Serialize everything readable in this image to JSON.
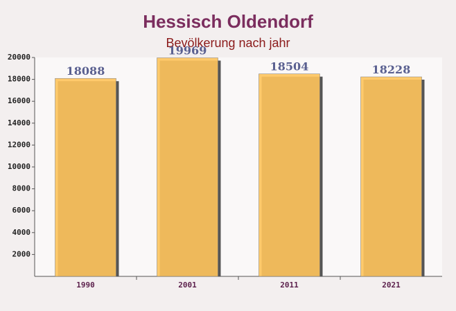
{
  "chart_data": {
    "type": "bar",
    "title": "Hessisch Oldendorf",
    "subtitle": "Bevölkerung nach jahr",
    "categories": [
      "1990",
      "2001",
      "2011",
      "2021"
    ],
    "values": [
      18088,
      19969,
      18504,
      18228
    ],
    "color": "#ffc45c",
    "ylim": [
      0,
      20000
    ],
    "yticks": [
      2000,
      4000,
      6000,
      8000,
      10000,
      12000,
      14000,
      16000,
      18000,
      20000
    ]
  }
}
